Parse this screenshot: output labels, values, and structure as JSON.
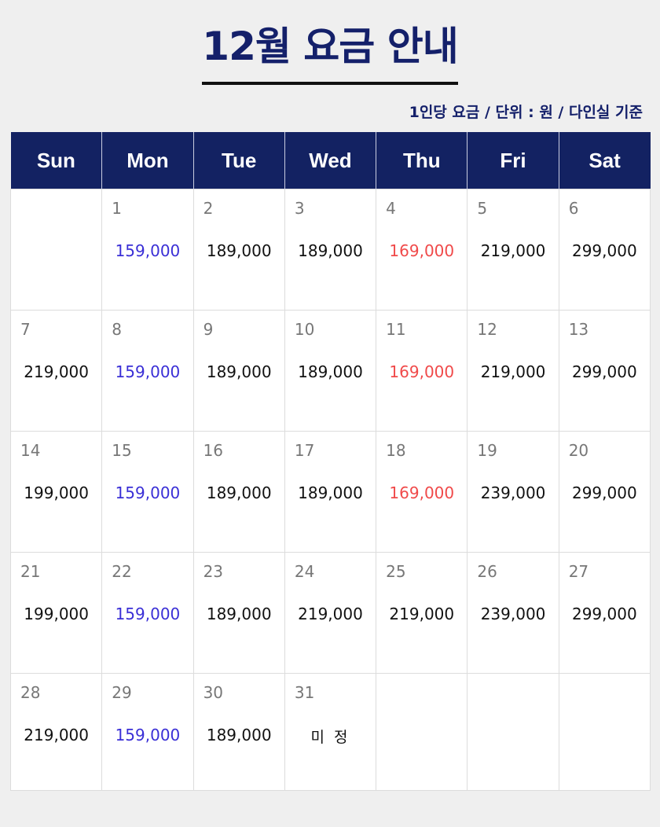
{
  "title": "12월 요금 안내",
  "subtitle": "1인당 요금 / 단위 : 원 / 다인실 기준",
  "weekdays": [
    "Sun",
    "Mon",
    "Tue",
    "Wed",
    "Thu",
    "Fri",
    "Sat"
  ],
  "colors": {
    "header_bg": "#132262",
    "title": "#14206a",
    "monday_price": "#3a2fd6",
    "thursday_price": "#f04a4a"
  },
  "weeks": [
    [
      {
        "day": "",
        "price": ""
      },
      {
        "day": "1",
        "price": "159,000"
      },
      {
        "day": "2",
        "price": "189,000"
      },
      {
        "day": "3",
        "price": "189,000"
      },
      {
        "day": "4",
        "price": "169,000"
      },
      {
        "day": "5",
        "price": "219,000"
      },
      {
        "day": "6",
        "price": "299,000"
      }
    ],
    [
      {
        "day": "7",
        "price": "219,000"
      },
      {
        "day": "8",
        "price": "159,000"
      },
      {
        "day": "9",
        "price": "189,000"
      },
      {
        "day": "10",
        "price": "189,000"
      },
      {
        "day": "11",
        "price": "169,000"
      },
      {
        "day": "12",
        "price": "219,000"
      },
      {
        "day": "13",
        "price": "299,000"
      }
    ],
    [
      {
        "day": "14",
        "price": "199,000"
      },
      {
        "day": "15",
        "price": "159,000"
      },
      {
        "day": "16",
        "price": "189,000"
      },
      {
        "day": "17",
        "price": "189,000"
      },
      {
        "day": "18",
        "price": "169,000"
      },
      {
        "day": "19",
        "price": "239,000"
      },
      {
        "day": "20",
        "price": "299,000"
      }
    ],
    [
      {
        "day": "21",
        "price": "199,000"
      },
      {
        "day": "22",
        "price": "159,000"
      },
      {
        "day": "23",
        "price": "189,000"
      },
      {
        "day": "24",
        "price": "219,000"
      },
      {
        "day": "25",
        "price": "219,000"
      },
      {
        "day": "26",
        "price": "239,000"
      },
      {
        "day": "27",
        "price": "299,000"
      }
    ],
    [
      {
        "day": "28",
        "price": "219,000"
      },
      {
        "day": "29",
        "price": "159,000"
      },
      {
        "day": "30",
        "price": "189,000"
      },
      {
        "day": "31",
        "price": "미 정"
      },
      {
        "day": "",
        "price": ""
      },
      {
        "day": "",
        "price": ""
      },
      {
        "day": "",
        "price": ""
      }
    ]
  ]
}
